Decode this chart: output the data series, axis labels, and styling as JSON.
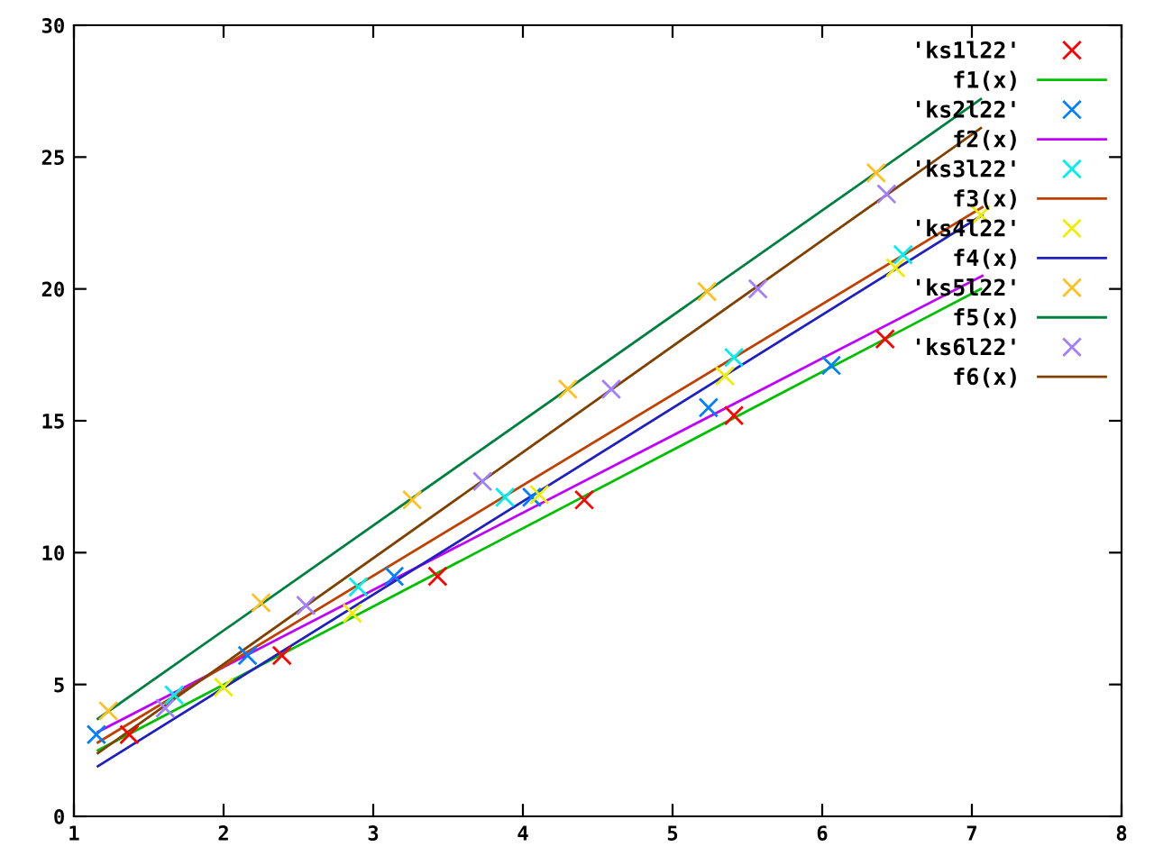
{
  "chart_data": {
    "type": "line",
    "xlim": [
      1,
      8
    ],
    "ylim": [
      0,
      30
    ],
    "xticks": [
      1,
      2,
      3,
      4,
      5,
      6,
      7,
      8
    ],
    "yticks": [
      0,
      5,
      10,
      15,
      20,
      25,
      30
    ],
    "grid": false,
    "legend": "top right",
    "series": [
      {
        "name": "'ks1l22'",
        "type": "scatter",
        "marker": "cross",
        "color": "#ff0000",
        "x": [
          1.37,
          2.39,
          3.43,
          4.41,
          5.41,
          6.42
        ],
        "values": [
          3.1,
          6.1,
          9.1,
          12.0,
          15.2,
          18.1
        ]
      },
      {
        "name": "f1(x)",
        "color": "#00c000",
        "x": [
          1.16,
          7.06
        ],
        "values": [
          2.5,
          20.0
        ]
      },
      {
        "name": "'ks2l22'",
        "type": "scatter",
        "marker": "cross",
        "color": "#0080ff",
        "x": [
          1.15,
          2.16,
          3.14,
          4.06,
          5.24,
          6.06
        ],
        "values": [
          3.1,
          6.1,
          9.1,
          12.1,
          15.5,
          17.1
        ]
      },
      {
        "name": "f2(x)",
        "color": "#c000ff",
        "x": [
          1.16,
          7.07
        ],
        "values": [
          3.2,
          20.5
        ]
      },
      {
        "name": "'ks3l22'",
        "type": "scatter",
        "marker": "cross",
        "color": "#00eeee",
        "x": [
          1.67,
          2.9,
          3.88,
          5.41,
          6.54
        ],
        "values": [
          4.6,
          8.7,
          12.1,
          17.4,
          21.3
        ]
      },
      {
        "name": "f3(x)",
        "color": "#c04000",
        "x": [
          1.16,
          7.07
        ],
        "values": [
          2.8,
          23.1
        ]
      },
      {
        "name": "'ks4l22'",
        "type": "scatter",
        "marker": "cross",
        "color": "#eeee00",
        "x": [
          2.0,
          2.86,
          4.11,
          5.35,
          6.49,
          7.06
        ],
        "values": [
          4.9,
          7.7,
          12.2,
          16.7,
          20.8,
          22.8
        ]
      },
      {
        "name": "f4(x)",
        "color": "#2020c0",
        "x": [
          1.16,
          7.07
        ],
        "values": [
          1.9,
          22.8
        ]
      },
      {
        "name": "'ks5l22'",
        "type": "scatter",
        "marker": "cross",
        "color": "#ffc020",
        "x": [
          1.23,
          2.25,
          3.26,
          4.3,
          5.23,
          6.36
        ],
        "values": [
          4.0,
          8.1,
          12.0,
          16.2,
          19.9,
          24.4
        ]
      },
      {
        "name": "f5(x)",
        "color": "#008040",
        "x": [
          1.16,
          7.06
        ],
        "values": [
          3.7,
          27.2
        ]
      },
      {
        "name": "'ks6l22'",
        "type": "scatter",
        "marker": "cross",
        "color": "#a080ff",
        "x": [
          1.61,
          2.55,
          3.73,
          4.59,
          5.57,
          6.43
        ],
        "values": [
          4.1,
          8.0,
          12.7,
          16.2,
          20.0,
          23.6
        ]
      },
      {
        "name": "f6(x)",
        "color": "#804000",
        "x": [
          1.16,
          7.06
        ],
        "values": [
          2.4,
          26.1
        ]
      }
    ]
  }
}
